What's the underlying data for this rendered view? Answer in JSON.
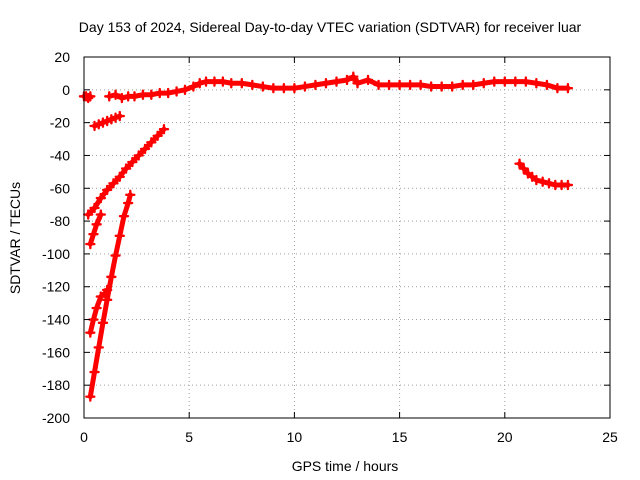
{
  "chart_data": {
    "type": "scatter",
    "title": "Day 153 of 2024, Sidereal Day-to-day VTEC variation (SDTVAR) for receiver luar",
    "xlabel": "GPS time / hours",
    "ylabel": "SDTVAR / TECUs",
    "xlim": [
      0,
      25
    ],
    "ylim": [
      -200,
      20
    ],
    "xticks": [
      0,
      5,
      10,
      15,
      20,
      25
    ],
    "yticks": [
      -200,
      -180,
      -160,
      -140,
      -120,
      -100,
      -80,
      -60,
      -40,
      -20,
      0,
      20
    ],
    "grid": true,
    "marker": "plus",
    "color": "#ff0000",
    "series": [
      {
        "x": [
          0.0,
          0.1,
          0.2,
          0.3
        ],
        "y": [
          -4,
          -4,
          -5,
          -4
        ]
      },
      {
        "x": [
          0.5,
          0.7,
          0.9,
          1.1,
          1.3,
          1.5,
          1.7
        ],
        "y": [
          -22,
          -21,
          -20,
          -19,
          -18,
          -17,
          -16
        ]
      },
      {
        "x": [
          1.2,
          1.5,
          1.8,
          2.1,
          2.4,
          2.8,
          3.2,
          3.6,
          4.0,
          4.4,
          4.8,
          5.2,
          5.5,
          5.8,
          6.2,
          6.6,
          7.0,
          7.5,
          8.0,
          8.5,
          9.0,
          9.5,
          10.0,
          10.5,
          11.0,
          11.5,
          12.0,
          12.5,
          12.8,
          13.0,
          13.5,
          14.0,
          14.5,
          15.0,
          15.5,
          16.0,
          16.5,
          17.0,
          17.5,
          18.0,
          18.5,
          19.0,
          19.5,
          20.0,
          20.5,
          21.0,
          21.5,
          22.0,
          22.5,
          23.0
        ],
        "y": [
          -4,
          -3,
          -5,
          -4,
          -4,
          -3,
          -3,
          -2,
          -2,
          -1,
          0,
          2,
          4,
          5,
          5,
          5,
          4,
          4,
          3,
          2,
          1,
          1,
          1,
          2,
          3,
          4,
          5,
          6,
          8,
          4,
          6,
          3,
          3,
          3,
          3,
          3,
          2,
          2,
          2,
          3,
          3,
          4,
          5,
          5,
          5,
          5,
          4,
          3,
          1,
          1
        ]
      },
      {
        "x": [
          0.2,
          0.5,
          0.8,
          1.1,
          1.4,
          1.7,
          2.0,
          2.3,
          2.6,
          2.9,
          3.2,
          3.5,
          3.8
        ],
        "y": [
          -76,
          -72,
          -66,
          -61,
          -57,
          -53,
          -48,
          -44,
          -40,
          -36,
          -32,
          -28,
          -24
        ]
      },
      {
        "x": [
          0.3,
          0.45,
          0.6,
          0.8
        ],
        "y": [
          -94,
          -88,
          -82,
          -76
        ]
      },
      {
        "x": [
          0.3,
          0.45,
          0.6,
          0.8,
          1.0,
          1.1
        ],
        "y": [
          -148,
          -140,
          -133,
          -126,
          -124,
          -122
        ]
      },
      {
        "x": [
          0.3,
          0.5,
          0.7,
          0.9,
          1.1,
          1.3,
          1.5,
          1.7,
          1.9,
          2.1,
          2.2
        ],
        "y": [
          -187,
          -172,
          -157,
          -142,
          -128,
          -114,
          -101,
          -89,
          -77,
          -69,
          -64
        ]
      },
      {
        "x": [
          20.7,
          20.9,
          21.1,
          21.3,
          21.5,
          21.8,
          22.1,
          22.4,
          22.7,
          23.0
        ],
        "y": [
          -45,
          -48,
          -51,
          -53,
          -55,
          -56,
          -57,
          -58,
          -58,
          -58
        ]
      }
    ]
  }
}
